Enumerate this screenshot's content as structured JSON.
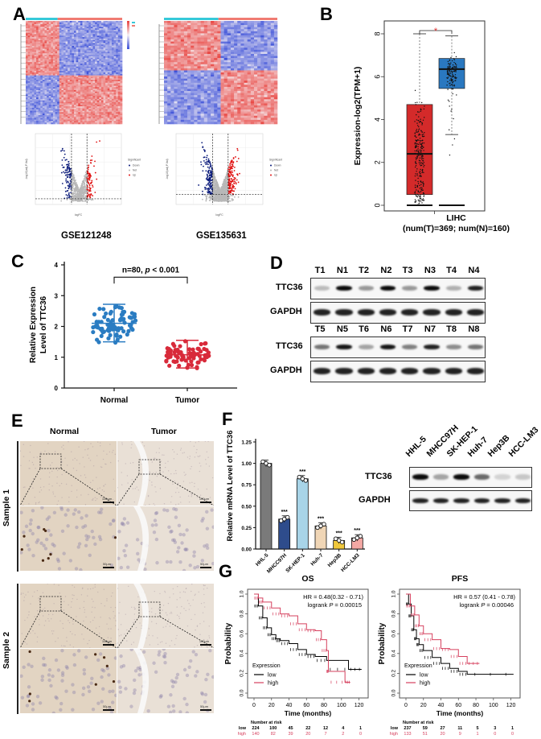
{
  "panels": {
    "A": {
      "label": "A",
      "datasets": [
        "GSE121248",
        "GSE135631"
      ],
      "volcano": {
        "xlabel": "logFC",
        "ylabel": "-log10(adj.P.Val)",
        "legend_title": "Significant",
        "legend": [
          "Down",
          "Not",
          "Up"
        ],
        "colors": {
          "down": "#0a1a7a",
          "not": "#b8b8b8",
          "up": "#e01010"
        }
      },
      "heatmap_colors": {
        "high": "#e8413c",
        "low": "#3a4fd8",
        "mid": "#f6f0f4",
        "group_bar_normal": "#36c9d9",
        "group_bar_tumor": "#f07c73"
      }
    },
    "B": {
      "label": "B",
      "ylabel": "Expression-log2(TPM+1)",
      "xlabel": "LIHC",
      "xsub": "(num(T)=369; num(N)=160)",
      "significance": "*",
      "yticks": [
        "0",
        "2",
        "4",
        "6",
        "8"
      ]
    },
    "C": {
      "label": "C",
      "ylabel_line1": "Relative Expression",
      "ylabel_line2": "Level of TTC36",
      "annotation": "n=80,",
      "p_italic": "p",
      "p_value": "< 0.001",
      "yticks": [
        "0",
        "1",
        "2",
        "3",
        "4"
      ],
      "categories": [
        "Normal",
        "Tumor"
      ]
    },
    "D": {
      "label": "D",
      "row1_lanes": [
        "T1",
        "N1",
        "T2",
        "N2",
        "T3",
        "N3",
        "T4",
        "N4"
      ],
      "row2_lanes": [
        "T5",
        "N5",
        "T6",
        "N6",
        "T7",
        "N7",
        "T8",
        "N8"
      ],
      "proteins": [
        "TTC36",
        "GAPDH"
      ]
    },
    "E": {
      "label": "E",
      "columns": [
        "Normal",
        "Tumor"
      ],
      "rows": [
        "Sample 1",
        "Sample 2"
      ],
      "scale_low": "100μm",
      "scale_high": "50μm"
    },
    "F": {
      "label": "F",
      "ylabel": "Relative mRNA Level of TTC36",
      "yticks": [
        "0.00",
        "0.25",
        "0.50",
        "0.75",
        "1.00",
        "1.25"
      ],
      "stars": "***",
      "blot_proteins": [
        "TTC36",
        "GAPDH"
      ],
      "blot_lanes": [
        "HHL-5",
        "MHCC97H",
        "SK-HEP-1",
        "Huh-7",
        "Hep3B",
        "HCC-LM3"
      ]
    },
    "G": {
      "label": "G",
      "os": {
        "title": "OS",
        "hr": "HR = 0.48(0.32 - 0.71)",
        "logrank_prefix": "logrank",
        "logrank_p": "P",
        "logrank_value": "= 0.00015",
        "number_at_risk_label": "Number at risk",
        "low_row": [
          "224",
          "100",
          "45",
          "22",
          "12",
          "4",
          "1"
        ],
        "high_row": [
          "140",
          "82",
          "39",
          "20",
          "7",
          "2",
          "0"
        ]
      },
      "pfs": {
        "title": "PFS",
        "hr": "HR = 0.57 (0.41 - 0.78)",
        "logrank_prefix": "logrank",
        "logrank_p": "P",
        "logrank_value": "= 0.00046",
        "number_at_risk_label": "Number at risk",
        "low_row": [
          "237",
          "59",
          "27",
          "11",
          "5",
          "3",
          "1"
        ],
        "high_row": [
          "133",
          "51",
          "20",
          "9",
          "1",
          "0",
          "0"
        ]
      },
      "ylabel": "Probability",
      "xlabel": "Time (months)",
      "xticks": [
        "0",
        "20",
        "40",
        "60",
        "80",
        "100",
        "120"
      ],
      "yticks": [
        "0.0",
        "0.2",
        "0.4",
        "0.6",
        "0.8",
        "1.0"
      ],
      "legend_title": "Expression",
      "legend_low": "low",
      "legend_high": "high",
      "risk_low_label": "low",
      "risk_high_label": "high"
    }
  },
  "chart_data": [
    {
      "id": "B",
      "type": "box",
      "title": "",
      "xlabel": "LIHC (num(T)=369; num(N)=160)",
      "ylabel": "Expression-log2(TPM+1)",
      "ylim": [
        0,
        8.5
      ],
      "series": [
        {
          "name": "Tumor",
          "color": "#d42a2a",
          "q1": 0.5,
          "median": 2.4,
          "q3": 4.7,
          "whisker_low": 0,
          "whisker_high": 8.0
        },
        {
          "name": "Normal",
          "color": "#2a78c0",
          "q1": 5.45,
          "median": 6.35,
          "q3": 6.85,
          "whisker_low": 3.3,
          "whisker_high": 7.9
        }
      ]
    },
    {
      "id": "C",
      "type": "scatter",
      "ylabel": "Relative Expression Level of TTC36",
      "ylim": [
        0,
        4
      ],
      "categories": [
        "Normal",
        "Tumor"
      ],
      "series": [
        {
          "name": "Normal",
          "color": "#2a7cc2",
          "mean": 2.1,
          "sd_low": 1.5,
          "sd_high": 2.72,
          "range": [
            0.8,
            3.25
          ]
        },
        {
          "name": "Tumor",
          "color": "#d82a3a",
          "mean": 1.08,
          "sd_low": 0.65,
          "sd_high": 1.55,
          "range": [
            0.3,
            2.05
          ]
        }
      ],
      "annotation": "n=80, p < 0.001"
    },
    {
      "id": "F",
      "type": "bar",
      "ylabel": "Relative mRNA Level of TTC36",
      "ylim": [
        0,
        1.25
      ],
      "categories": [
        "HHL-5",
        "MHCC97H",
        "SK-HEP-1",
        "Huh-7",
        "Hep3B",
        "HCC-LM3"
      ],
      "values": [
        1.0,
        0.35,
        0.82,
        0.27,
        0.1,
        0.13
      ],
      "colors": [
        "#7a7a7a",
        "#2e4c8c",
        "#a8d4e8",
        "#f0d6b6",
        "#f0c83c",
        "#f4a8a4"
      ],
      "significance": [
        "",
        "***",
        "***",
        "***",
        "***",
        "***"
      ]
    },
    {
      "id": "G-OS",
      "type": "line",
      "title": "OS",
      "xlabel": "Time (months)",
      "ylabel": "Probability",
      "xlim": [
        0,
        125
      ],
      "ylim": [
        0,
        1
      ],
      "series": [
        {
          "name": "low",
          "color": "#000000",
          "x": [
            0,
            5,
            10,
            15,
            20,
            25,
            30,
            40,
            50,
            60,
            70,
            83,
            108,
            123
          ],
          "y": [
            1.0,
            0.88,
            0.76,
            0.66,
            0.59,
            0.55,
            0.53,
            0.5,
            0.44,
            0.39,
            0.37,
            0.33,
            0.24,
            0.24
          ]
        },
        {
          "name": "high",
          "color": "#d6405e",
          "x": [
            0,
            5,
            10,
            20,
            30,
            40,
            50,
            60,
            70,
            77,
            83,
            85,
            104,
            110
          ],
          "y": [
            1.0,
            0.96,
            0.92,
            0.86,
            0.8,
            0.78,
            0.7,
            0.64,
            0.63,
            0.54,
            0.43,
            0.22,
            0.11,
            0.11
          ]
        }
      ],
      "annotation": [
        "HR = 0.48(0.32 - 0.71)",
        "logrank P = 0.00015"
      ]
    },
    {
      "id": "G-PFS",
      "type": "line",
      "title": "PFS",
      "xlabel": "Time (months)",
      "ylabel": "Probability",
      "xlim": [
        0,
        125
      ],
      "ylim": [
        0,
        1
      ],
      "series": [
        {
          "name": "low",
          "color": "#000000",
          "x": [
            0,
            3,
            6,
            9,
            12,
            15,
            20,
            30,
            40,
            50,
            60,
            70,
            123
          ],
          "y": [
            1.0,
            0.9,
            0.78,
            0.64,
            0.55,
            0.49,
            0.43,
            0.36,
            0.3,
            0.25,
            0.22,
            0.19,
            0.19
          ]
        },
        {
          "name": "high",
          "color": "#d6405e",
          "x": [
            0,
            5,
            10,
            15,
            20,
            30,
            40,
            50,
            60,
            70,
            84
          ],
          "y": [
            1.0,
            0.88,
            0.79,
            0.68,
            0.6,
            0.54,
            0.45,
            0.44,
            0.37,
            0.3,
            0.3
          ]
        }
      ],
      "annotation": [
        "HR = 0.57 (0.41 - 0.78)",
        "logrank P = 0.00046"
      ]
    }
  ]
}
